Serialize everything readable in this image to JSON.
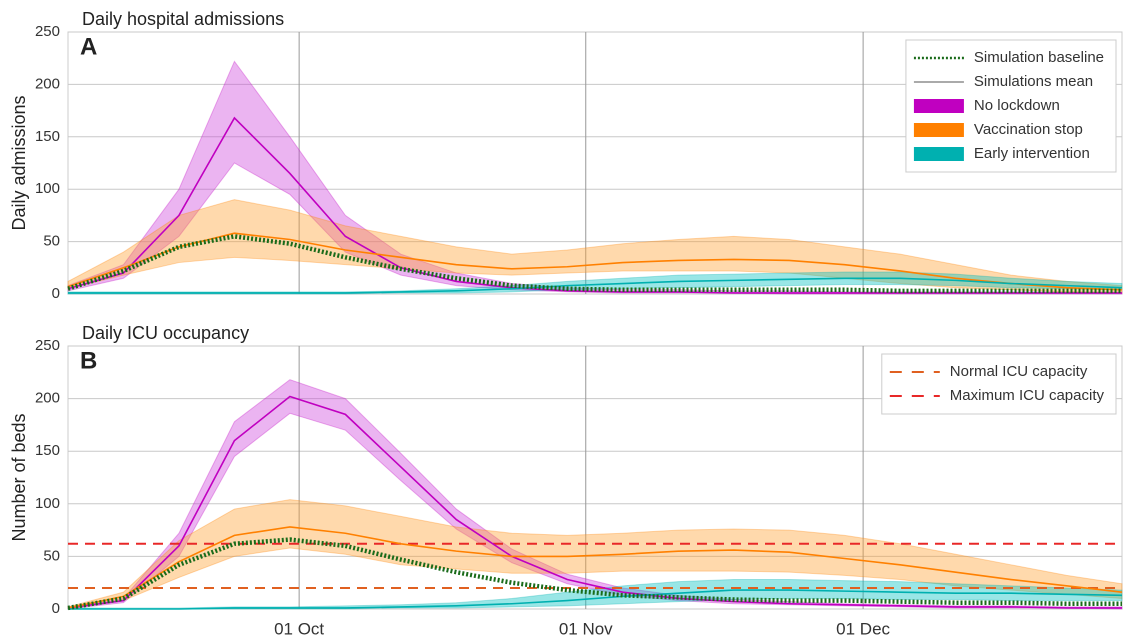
{
  "chart_data": [
    {
      "type": "line",
      "title": "Daily hospital admissions",
      "panel_label": "A",
      "ylabel": "Daily admissions",
      "x": [
        "06 Sep",
        "12 Sep",
        "18 Sep",
        "24 Sep",
        "30 Sep",
        "06 Oct",
        "12 Oct",
        "18 Oct",
        "24 Oct",
        "30 Oct",
        "05 Nov",
        "11 Nov",
        "17 Nov",
        "23 Nov",
        "29 Nov",
        "05 Dec",
        "11 Dec",
        "17 Dec",
        "23 Dec",
        "29 Dec"
      ],
      "xlim": [
        "06 Sep",
        "29 Dec"
      ],
      "xticks": [
        "01 Oct",
        "01 Nov",
        "01 Dec"
      ],
      "ylim": [
        0,
        250
      ],
      "yticks": [
        0,
        50,
        100,
        150,
        200,
        250
      ],
      "grid": true,
      "legend": "upper right",
      "mean_label": "Simulations mean",
      "mean_color": "#aaaaaa",
      "series": [
        {
          "name": "Simulation baseline",
          "color": "#1a6b1a",
          "style": "dotted",
          "values": [
            5,
            22,
            45,
            55,
            48,
            35,
            24,
            15,
            8,
            5,
            4,
            4,
            4,
            4,
            4,
            3,
            3,
            3,
            3,
            3
          ]
        },
        {
          "name": "No lockdown",
          "color": "#c000c0",
          "fill": "#cc44dd",
          "style": "band",
          "values": [
            5,
            20,
            75,
            168,
            115,
            55,
            25,
            12,
            6,
            3,
            2,
            2,
            1,
            1,
            1,
            1,
            1,
            1,
            1,
            1
          ],
          "lower": [
            3,
            15,
            55,
            125,
            95,
            40,
            18,
            8,
            4,
            2,
            1,
            1,
            1,
            0,
            0,
            0,
            0,
            0,
            0,
            0
          ],
          "upper": [
            8,
            28,
            100,
            222,
            150,
            75,
            38,
            20,
            10,
            6,
            4,
            4,
            3,
            3,
            2,
            2,
            2,
            2,
            2,
            2
          ]
        },
        {
          "name": "Vaccination stop",
          "color": "#ff8000",
          "fill": "#ffa030",
          "style": "band",
          "values": [
            7,
            25,
            45,
            58,
            52,
            42,
            35,
            28,
            24,
            26,
            30,
            32,
            33,
            32,
            28,
            22,
            15,
            10,
            6,
            4
          ],
          "lower": [
            5,
            18,
            30,
            35,
            32,
            28,
            24,
            20,
            18,
            20,
            22,
            22,
            22,
            20,
            15,
            10,
            6,
            4,
            2,
            1
          ],
          "upper": [
            12,
            40,
            75,
            90,
            80,
            65,
            55,
            45,
            38,
            42,
            48,
            52,
            55,
            52,
            45,
            38,
            28,
            18,
            12,
            8
          ]
        },
        {
          "name": "Early intervention",
          "color": "#00b0b0",
          "fill": "#00c0c0",
          "style": "band",
          "values": [
            1,
            1,
            1,
            1,
            1,
            1,
            2,
            3,
            5,
            8,
            10,
            12,
            13,
            14,
            15,
            15,
            13,
            10,
            8,
            6
          ],
          "lower": [
            0,
            0,
            0,
            0,
            0,
            0,
            1,
            1,
            2,
            4,
            5,
            6,
            7,
            8,
            9,
            9,
            8,
            6,
            5,
            4
          ],
          "upper": [
            2,
            2,
            2,
            2,
            2,
            2,
            3,
            5,
            8,
            12,
            15,
            18,
            19,
            20,
            21,
            21,
            19,
            15,
            12,
            10
          ]
        }
      ]
    },
    {
      "type": "line",
      "title": "Daily ICU occupancy",
      "panel_label": "B",
      "ylabel": "Number of beds",
      "x": [
        "06 Sep",
        "12 Sep",
        "18 Sep",
        "24 Sep",
        "30 Sep",
        "06 Oct",
        "12 Oct",
        "18 Oct",
        "24 Oct",
        "30 Oct",
        "05 Nov",
        "11 Nov",
        "17 Nov",
        "23 Nov",
        "29 Nov",
        "05 Dec",
        "11 Dec",
        "17 Dec",
        "23 Dec",
        "29 Dec"
      ],
      "xlim": [
        "06 Sep",
        "29 Dec"
      ],
      "xticks": [
        "01 Oct",
        "01 Nov",
        "01 Dec"
      ],
      "ylim": [
        0,
        250
      ],
      "yticks": [
        0,
        50,
        100,
        150,
        200,
        250
      ],
      "grid": true,
      "legend": "upper right",
      "reference_lines": [
        {
          "name": "Normal ICU capacity",
          "color": "#e06020",
          "value": 20
        },
        {
          "name": "Maximum ICU capacity",
          "color": "#e82828",
          "value": 62
        }
      ],
      "series": [
        {
          "color": "#1a6b1a",
          "style": "dotted",
          "values": [
            1,
            10,
            42,
            62,
            66,
            60,
            47,
            35,
            25,
            18,
            13,
            11,
            9,
            8,
            8,
            7,
            6,
            6,
            5,
            5
          ]
        },
        {
          "color": "#c000c0",
          "fill": "#cc44dd",
          "style": "band",
          "values": [
            1,
            8,
            60,
            160,
            202,
            185,
            135,
            85,
            50,
            28,
            16,
            10,
            7,
            5,
            4,
            3,
            2,
            2,
            1,
            1
          ],
          "lower": [
            0,
            6,
            50,
            145,
            186,
            170,
            122,
            76,
            44,
            24,
            13,
            8,
            5,
            4,
            3,
            2,
            1,
            1,
            1,
            0
          ],
          "upper": [
            2,
            10,
            72,
            178,
            218,
            200,
            148,
            95,
            57,
            33,
            20,
            13,
            9,
            7,
            5,
            4,
            3,
            3,
            2,
            2
          ]
        },
        {
          "color": "#ff8000",
          "fill": "#ffa030",
          "style": "band",
          "values": [
            1,
            12,
            45,
            70,
            78,
            72,
            62,
            55,
            50,
            50,
            52,
            55,
            56,
            54,
            48,
            42,
            35,
            28,
            22,
            16
          ],
          "lower": [
            0,
            8,
            30,
            50,
            58,
            52,
            42,
            38,
            34,
            34,
            36,
            36,
            36,
            35,
            32,
            28,
            22,
            18,
            14,
            10
          ],
          "upper": [
            2,
            16,
            65,
            95,
            104,
            98,
            88,
            78,
            72,
            70,
            72,
            75,
            76,
            75,
            70,
            62,
            52,
            42,
            32,
            24
          ]
        },
        {
          "color": "#00b0b0",
          "fill": "#00c0c0",
          "style": "band",
          "values": [
            0,
            0,
            0,
            1,
            1,
            1,
            2,
            3,
            5,
            8,
            12,
            15,
            18,
            18,
            17,
            16,
            15,
            15,
            14,
            13
          ],
          "lower": [
            0,
            0,
            0,
            0,
            0,
            0,
            1,
            1,
            2,
            3,
            5,
            7,
            9,
            10,
            10,
            9,
            9,
            8,
            8,
            8
          ],
          "upper": [
            1,
            1,
            1,
            2,
            2,
            3,
            4,
            6,
            10,
            16,
            22,
            26,
            28,
            28,
            27,
            26,
            24,
            22,
            20,
            18
          ]
        }
      ]
    }
  ]
}
